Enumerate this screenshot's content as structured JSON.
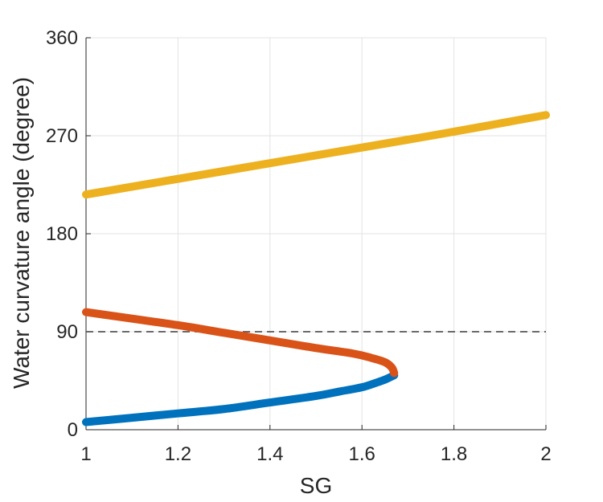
{
  "chart_data": {
    "type": "line",
    "title": "",
    "xlabel": "SG",
    "ylabel": "Water curvature angle (degree)",
    "xlim": [
      1,
      2
    ],
    "ylim": [
      0,
      360
    ],
    "xticks": [
      "1",
      "1.2",
      "1.4",
      "1.6",
      "1.8",
      "2"
    ],
    "yticks": [
      "0",
      "90",
      "180",
      "270",
      "360"
    ],
    "grid": true,
    "legend": "none",
    "reference_line": {
      "y": 90,
      "style": "dashed",
      "color": "#555555"
    },
    "series": [
      {
        "color": "#0072BD",
        "x": [
          1.0,
          1.1,
          1.2,
          1.3,
          1.4,
          1.5,
          1.55,
          1.6,
          1.63,
          1.65,
          1.67
        ],
        "y": [
          7,
          11,
          15,
          19,
          25,
          31,
          35,
          39,
          43,
          46,
          50
        ]
      },
      {
        "color": "#D95319",
        "x": [
          1.67,
          1.665,
          1.65,
          1.62,
          1.58,
          1.5,
          1.4,
          1.3,
          1.2,
          1.1,
          1.0
        ],
        "y": [
          52,
          57,
          62,
          66,
          70,
          75,
          82,
          89,
          96,
          102,
          108
        ]
      },
      {
        "color": "#EDB120",
        "x": [
          1.0,
          1.25,
          1.5,
          1.75,
          2.0
        ],
        "y": [
          216,
          234,
          252,
          270,
          289
        ]
      }
    ]
  }
}
